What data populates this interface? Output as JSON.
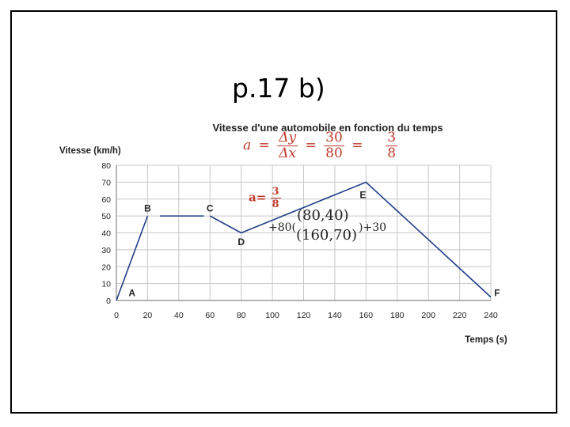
{
  "slide": {
    "title": "p.17 b)"
  },
  "chart_data": {
    "type": "line",
    "title": "Vitesse d'une automobile en fonction du temps",
    "xlabel": "Temps (s)",
    "ylabel": "Vitesse (km/h)",
    "xlim": [
      0,
      240
    ],
    "ylim": [
      0,
      80
    ],
    "x_ticks": [
      0,
      20,
      40,
      60,
      80,
      100,
      120,
      140,
      160,
      180,
      200,
      220,
      240
    ],
    "y_ticks": [
      0,
      10,
      20,
      30,
      40,
      50,
      60,
      70,
      80
    ],
    "grid": true,
    "series": [
      {
        "x": [
          0,
          20
        ],
        "y": [
          0,
          50
        ]
      },
      {
        "x": [
          28,
          56
        ],
        "y": [
          50,
          50
        ]
      },
      {
        "x": [
          60,
          80,
          160,
          240
        ],
        "y": [
          50,
          40,
          70,
          2
        ]
      }
    ],
    "point_labels": [
      {
        "label": "A",
        "x": 10,
        "y": 5
      },
      {
        "label": "B",
        "x": 20,
        "y": 55
      },
      {
        "label": "C",
        "x": 60,
        "y": 55
      },
      {
        "label": "D",
        "x": 80,
        "y": 35
      },
      {
        "label": "E",
        "x": 158,
        "y": 63
      },
      {
        "label": "F",
        "x": 244,
        "y": 5
      }
    ],
    "line_color": "#1f3c88"
  },
  "annotations": {
    "formula": {
      "a": "a",
      "eq": "=",
      "dy": "Δy",
      "dx": "Δx",
      "num": "30",
      "den": "80",
      "eq2": "=",
      "num2": "3",
      "den2": "8"
    },
    "a_small": {
      "a": "a=",
      "num": "3",
      "den": "8"
    },
    "point1": "(80,40)",
    "point2": "(160,70)",
    "plus80": "+80(",
    "plus30": ")+30",
    "annotation_color": "#c0392b"
  }
}
